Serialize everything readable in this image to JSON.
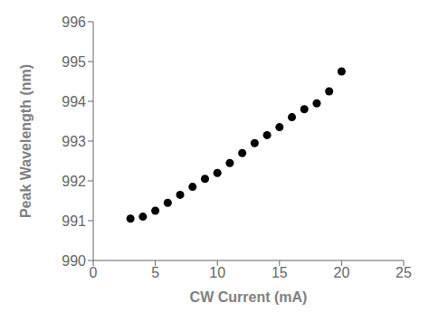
{
  "chart_data": {
    "type": "scatter",
    "xlabel": "CW Current (mA)",
    "ylabel": "Peak Wavelength (nm)",
    "x": [
      3,
      4,
      5,
      6,
      7,
      8,
      9,
      10,
      11,
      12,
      13,
      14,
      15,
      16,
      17,
      18,
      19,
      20
    ],
    "values": [
      991.05,
      991.1,
      991.25,
      991.45,
      991.65,
      991.85,
      992.05,
      992.2,
      992.45,
      992.7,
      992.95,
      993.15,
      993.35,
      993.6,
      993.8,
      993.95,
      994.25,
      994.75
    ],
    "xlim": [
      0,
      25
    ],
    "ylim": [
      990,
      996
    ],
    "xticks": [
      0,
      5,
      10,
      15,
      20,
      25
    ],
    "yticks": [
      990,
      991,
      992,
      993,
      994,
      995,
      996
    ],
    "color": "black",
    "marker": "circle",
    "grid": false
  }
}
